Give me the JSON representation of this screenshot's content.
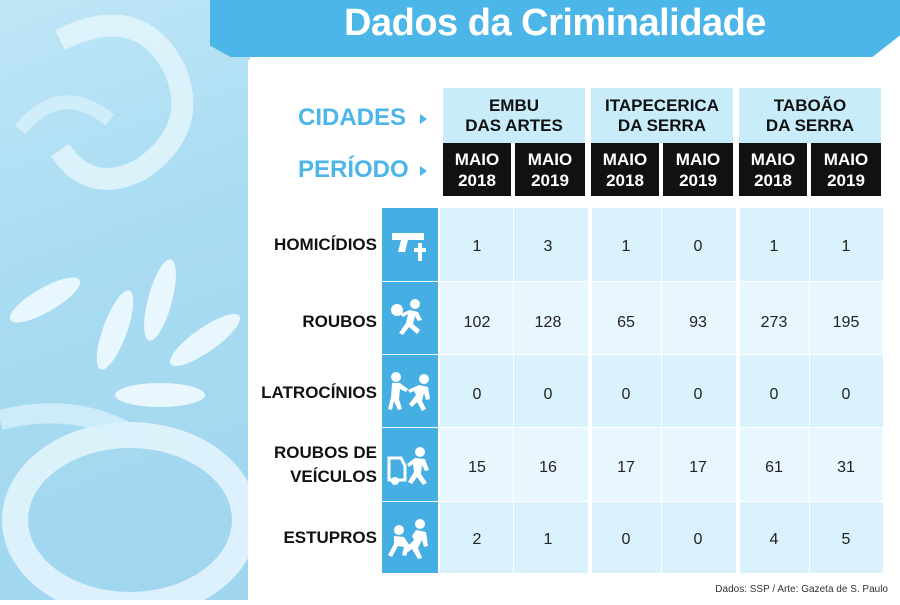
{
  "title": "Dados da Criminalidade",
  "labels": {
    "cidades": "CIDADES",
    "periodo": "PERÍODO"
  },
  "cities": [
    {
      "line1": "EMBU",
      "line2": "DAS ARTES"
    },
    {
      "line1": "ITAPECERICA",
      "line2": "DA SERRA"
    },
    {
      "line1": "TABOÃO",
      "line2": "DA SERRA"
    }
  ],
  "periods": [
    {
      "month": "MAIO",
      "year": "2018"
    },
    {
      "month": "MAIO",
      "year": "2019"
    },
    {
      "month": "MAIO",
      "year": "2018"
    },
    {
      "month": "MAIO",
      "year": "2019"
    },
    {
      "month": "MAIO",
      "year": "2018"
    },
    {
      "month": "MAIO",
      "year": "2019"
    }
  ],
  "source": "Dados: SSP / Arte: Gazeta de S. Paulo",
  "colors": {
    "accent": "#4db6e8",
    "row_bg": "#daf2fc",
    "header_bg": "#111111"
  },
  "chart_data": {
    "type": "table",
    "title": "Dados da Criminalidade",
    "columns": [
      "EMBU DAS ARTES MAIO 2018",
      "EMBU DAS ARTES MAIO 2019",
      "ITAPECERICA DA SERRA MAIO 2018",
      "ITAPECERICA DA SERRA MAIO 2019",
      "TABOÃO DA SERRA MAIO 2018",
      "TABOÃO DA SERRA MAIO 2019"
    ],
    "rows": [
      {
        "label1": "HOMICÍDIOS",
        "label2": "",
        "icon": "gun-cross-icon",
        "values": [
          "1",
          "3",
          "1",
          "0",
          "1",
          "1"
        ]
      },
      {
        "label1": "ROUBOS",
        "label2": "",
        "icon": "robber-running-icon",
        "values": [
          "102",
          "128",
          "65",
          "93",
          "273",
          "195"
        ]
      },
      {
        "label1": "LATROCÍNIOS",
        "label2": "",
        "icon": "robbery-attack-icon",
        "values": [
          "0",
          "0",
          "0",
          "0",
          "0",
          "0"
        ]
      },
      {
        "label1": "ROUBOS DE",
        "label2": "VEÍCULOS",
        "icon": "car-theft-icon",
        "values": [
          "15",
          "16",
          "17",
          "17",
          "61",
          "31"
        ]
      },
      {
        "label1": "ESTUPROS",
        "label2": "",
        "icon": "assault-icon",
        "values": [
          "2",
          "1",
          "0",
          "0",
          "4",
          "5"
        ]
      }
    ]
  }
}
